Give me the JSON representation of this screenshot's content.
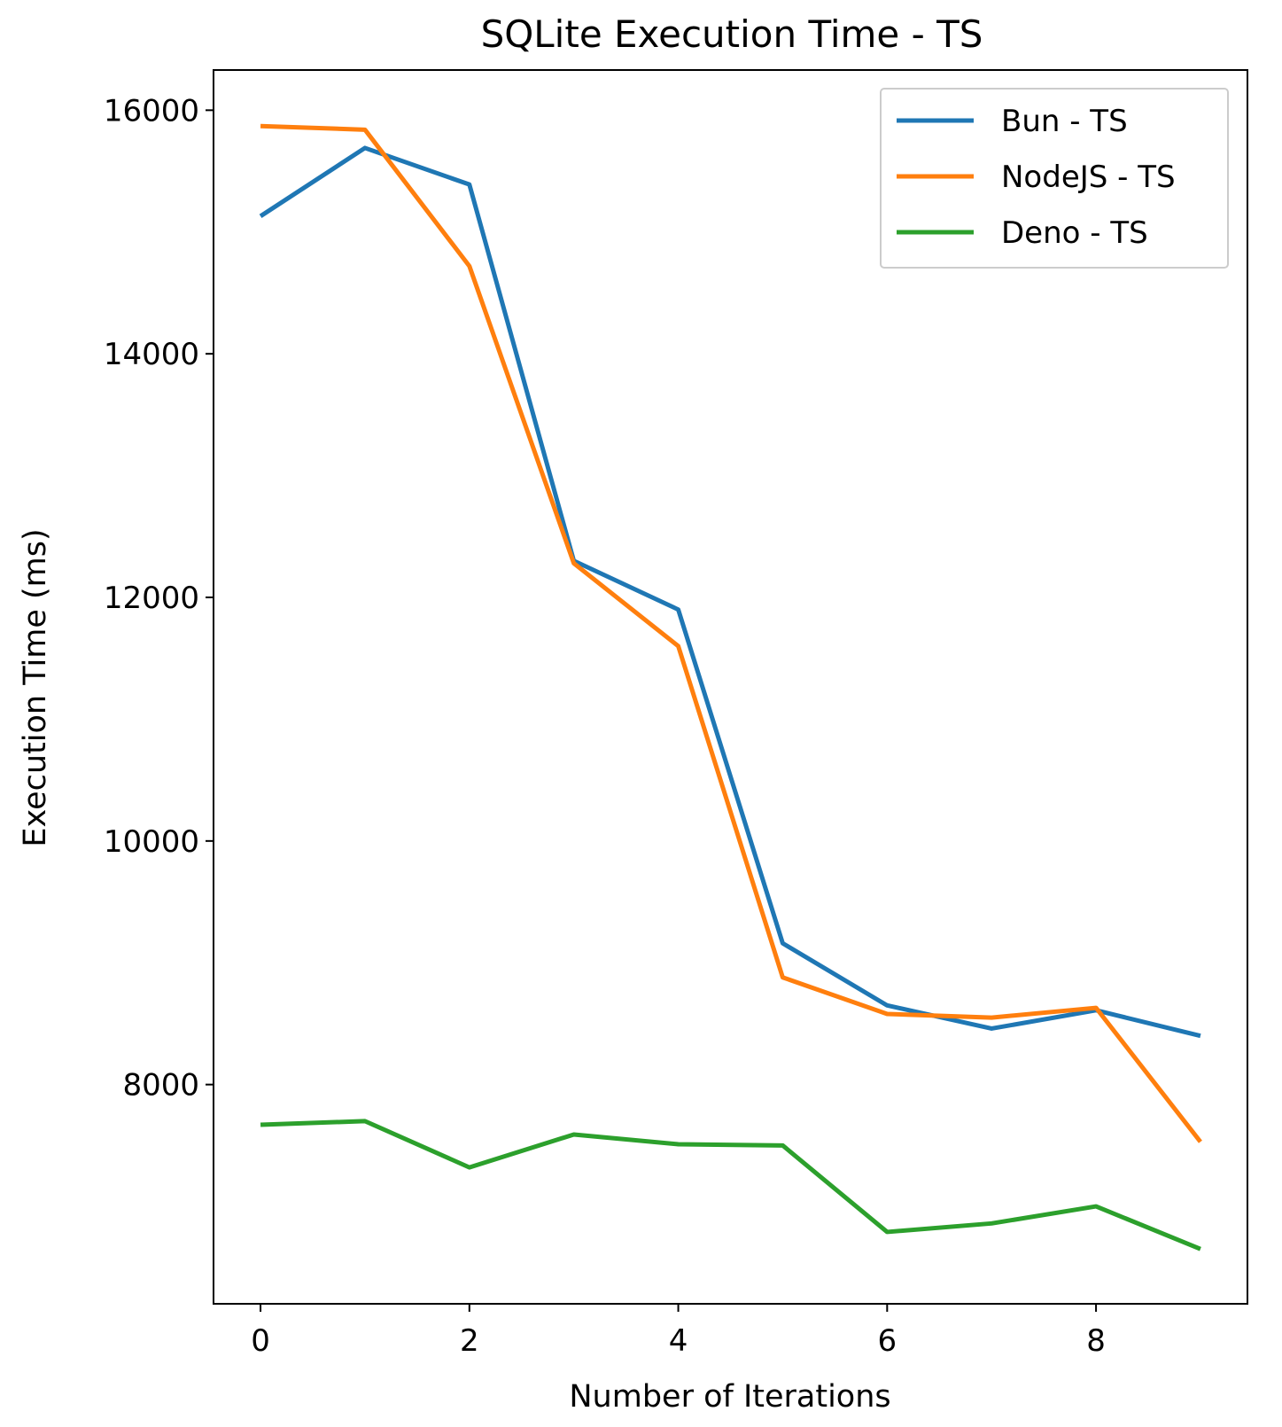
{
  "chart_data": {
    "type": "line",
    "title": "SQLite Execution Time - TS",
    "xlabel": "Number of Iterations",
    "ylabel": "Execution Time (ms)",
    "xlim": [
      -0.45,
      9.45
    ],
    "ylim": [
      6200,
      16330
    ],
    "xticks": [
      0,
      2,
      4,
      6,
      8
    ],
    "yticks": [
      8000,
      10000,
      12000,
      14000,
      16000
    ],
    "grid": false,
    "legend_position": "upper right",
    "x": [
      0,
      1,
      2,
      3,
      4,
      5,
      6,
      7,
      8,
      9
    ],
    "series": [
      {
        "name": "Bun - TS",
        "color": "#1f77b4",
        "values": [
          15130,
          15690,
          15390,
          12300,
          11900,
          9160,
          8650,
          8460,
          8610,
          8400
        ]
      },
      {
        "name": "NodeJS - TS",
        "color": "#ff7f0e",
        "values": [
          15870,
          15840,
          14720,
          12280,
          11600,
          8880,
          8580,
          8550,
          8630,
          7530
        ]
      },
      {
        "name": "Deno - TS",
        "color": "#2ca02c",
        "values": [
          7670,
          7700,
          7320,
          7590,
          7510,
          7500,
          6790,
          6860,
          7000,
          6650
        ]
      }
    ]
  }
}
